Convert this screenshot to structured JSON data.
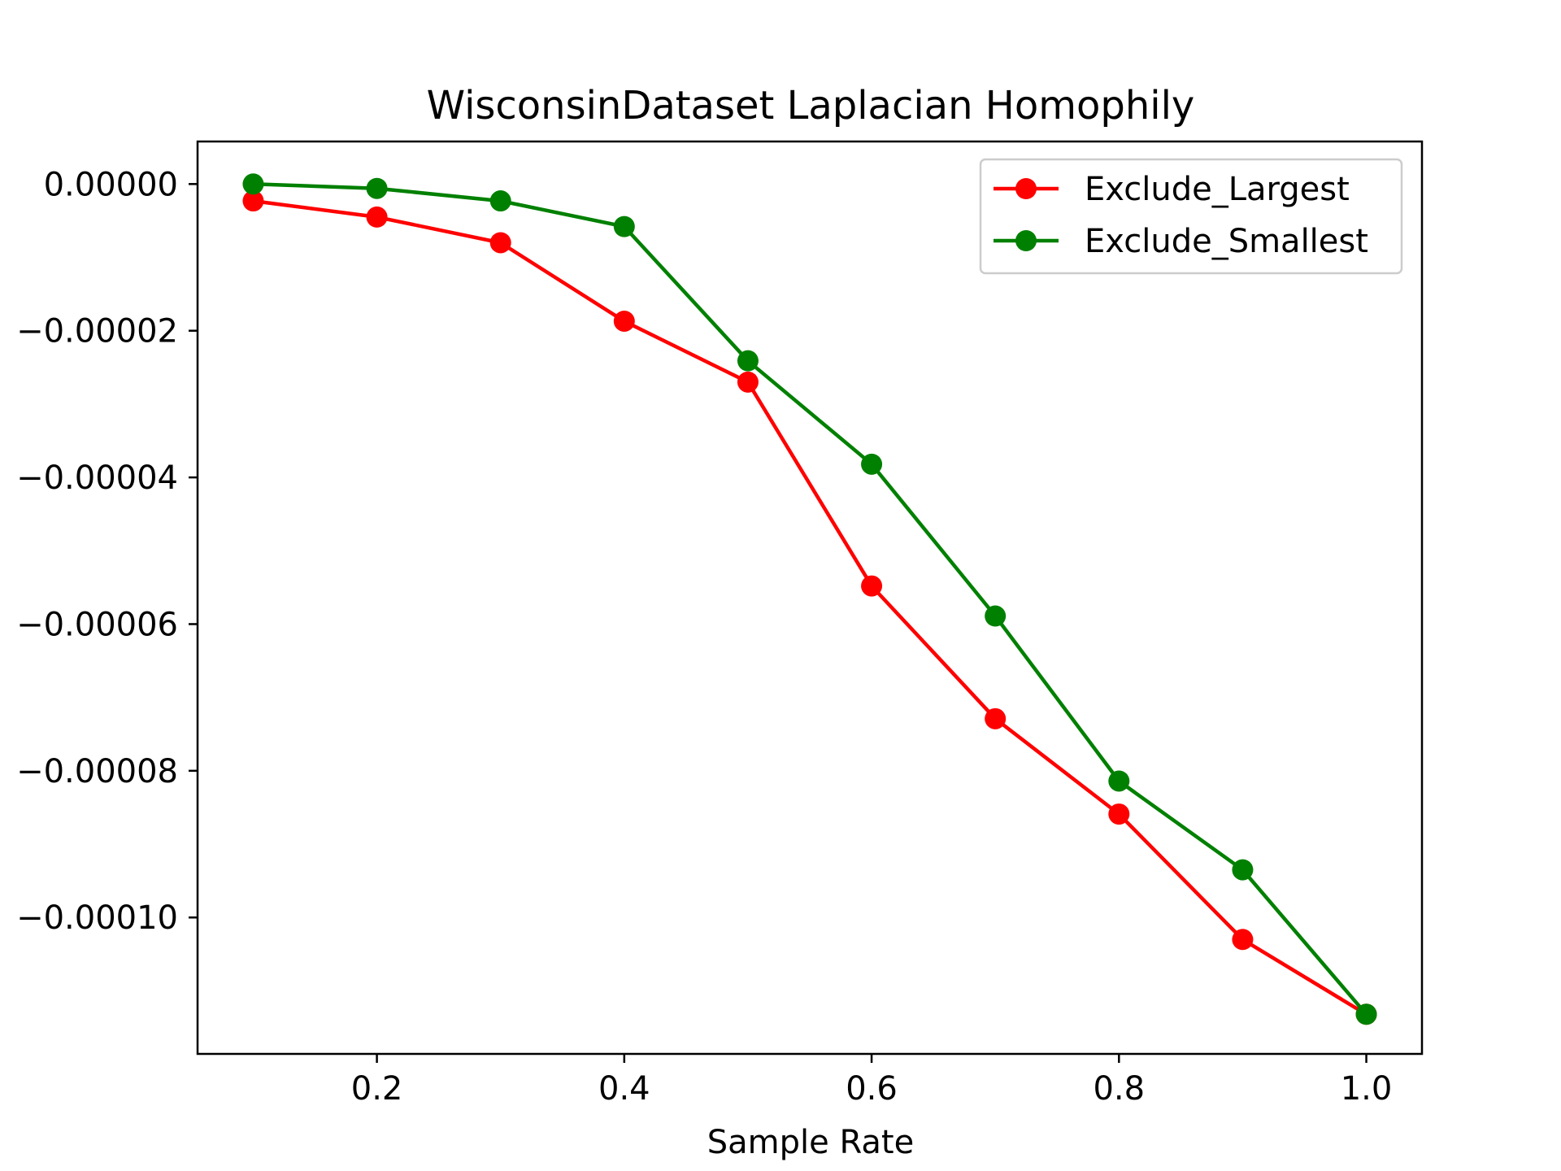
{
  "chart_data": {
    "type": "line",
    "title": "WisconsinDataset Laplacian Homophily",
    "xlabel": "Sample Rate",
    "ylabel": "",
    "x": [
      0.1,
      0.2,
      0.3,
      0.4,
      0.5,
      0.6,
      0.7,
      0.8,
      0.9,
      1.0
    ],
    "xlim": [
      0.055,
      1.045
    ],
    "ylim": [
      -0.0001186,
      5.8e-06
    ],
    "xticks": [
      0.2,
      0.4,
      0.6,
      0.8,
      1.0
    ],
    "xtick_labels": [
      "0.2",
      "0.4",
      "0.6",
      "0.8",
      "1.0"
    ],
    "yticks": [
      0,
      -2e-05,
      -4e-05,
      -6e-05,
      -8e-05,
      -0.0001
    ],
    "ytick_labels": [
      "0.00000",
      "−0.00002",
      "−0.00004",
      "−0.00006",
      "−0.00008",
      "−0.00010"
    ],
    "grid": false,
    "legend_position": "upper right",
    "series": [
      {
        "name": "Exclude_Largest",
        "color": "#ff0000",
        "marker": "circle",
        "values": [
          -2.3e-06,
          -4.5e-06,
          -8e-06,
          -1.87e-05,
          -2.7e-05,
          -5.48e-05,
          -7.29e-05,
          -8.59e-05,
          -0.000103,
          -0.0001132
        ]
      },
      {
        "name": "Exclude_Smallest",
        "color": "#008000",
        "marker": "circle",
        "values": [
          0.0,
          -6e-07,
          -2.3e-06,
          -5.8e-06,
          -2.41e-05,
          -3.82e-05,
          -5.89e-05,
          -8.14e-05,
          -9.35e-05,
          -0.0001132
        ]
      }
    ]
  }
}
